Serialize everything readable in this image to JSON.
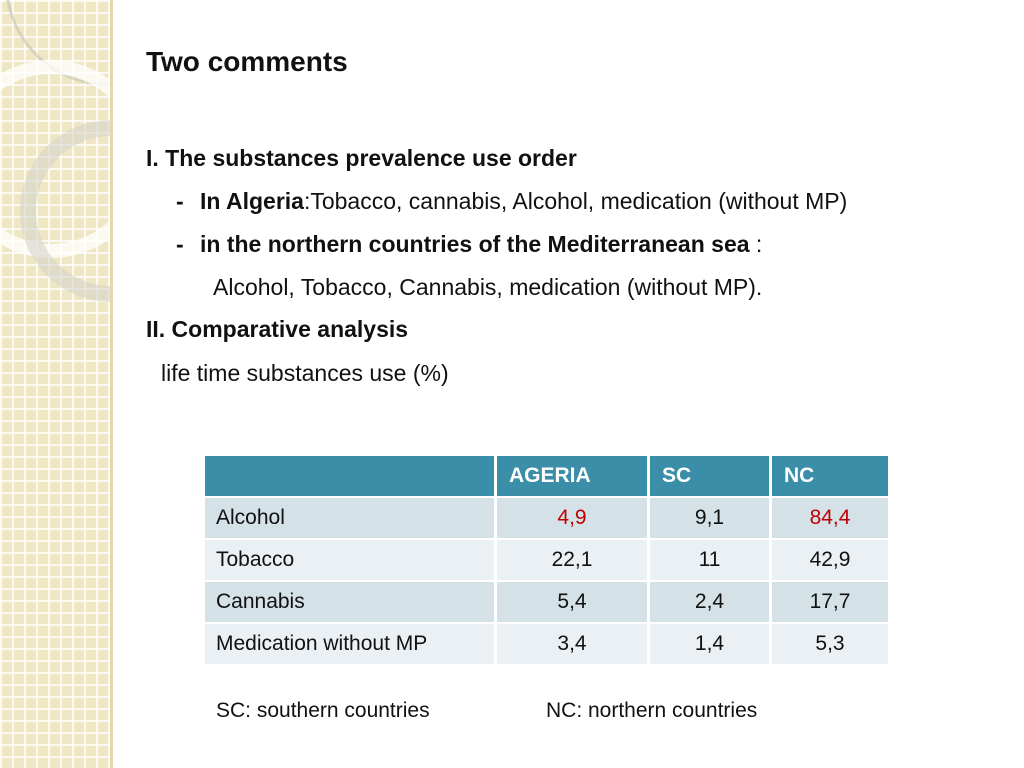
{
  "title": "Two comments",
  "section1": {
    "heading": "I. The substances prevalence use order",
    "algeria": {
      "dash": "-",
      "label": "In Algeria",
      "text": ":Tobacco, cannabis, Alcohol, medication (without MP)"
    },
    "northern": {
      "dash": "-",
      "label": "in the northern countries of the Mediterranean sea",
      "colon": " :",
      "list": "Alcohol, Tobacco, Cannabis,  medication (without MP)."
    }
  },
  "section2": {
    "heading": "II.  Comparative analysis",
    "subtitle": "life time substances use (%)"
  },
  "table": {
    "headers": [
      "",
      "AGERIA",
      "SC",
      "NC"
    ],
    "rows": [
      {
        "label": "Alcohol",
        "values": [
          "4,9",
          "9,1",
          "84,4"
        ]
      },
      {
        "label": "Tobacco",
        "values": [
          "22,1",
          "11",
          "42,9"
        ]
      },
      {
        "label": "Cannabis",
        "values": [
          "5,4",
          "2,4",
          "17,7"
        ]
      },
      {
        "label": "Medication without MP",
        "values": [
          "3,4",
          "1,4",
          "5,3"
        ]
      }
    ],
    "highlight_color": "#c00000",
    "header_color": "#3a8ea7"
  },
  "footnotes": {
    "sc": "SC: southern countries",
    "nc": "NC: northern countries"
  }
}
